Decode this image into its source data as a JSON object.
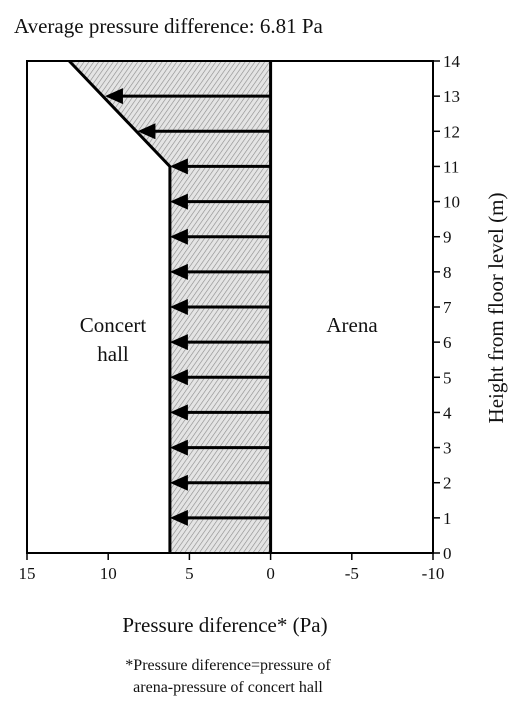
{
  "chart_data": {
    "type": "area",
    "title": "Average pressure difference: 6.81 Pa",
    "xlabel": "Pressure diference* (Pa)",
    "ylabel": "Height from floor level (m)",
    "xlim": [
      15,
      -10
    ],
    "ylim": [
      0,
      14
    ],
    "x_ticks": [
      "15",
      "10",
      "5",
      "0",
      "-5",
      "-10"
    ],
    "y_ticks": [
      "0",
      "1",
      "2",
      "3",
      "4",
      "5",
      "6",
      "7",
      "8",
      "9",
      "10",
      "11",
      "12",
      "13",
      "14"
    ],
    "profile": {
      "x": [
        6.2,
        6.2,
        12.4
      ],
      "y": [
        0,
        11,
        14
      ]
    },
    "arrows": {
      "heights": [
        1,
        2,
        3,
        4,
        5,
        6,
        7,
        8,
        9,
        10,
        11,
        12,
        13
      ],
      "values": [
        6.2,
        6.2,
        6.2,
        6.2,
        6.2,
        6.2,
        6.2,
        6.2,
        6.2,
        6.2,
        6.2,
        8.2,
        10.2
      ],
      "direction": "toward concert hall"
    },
    "region_labels": {
      "left": [
        "Concert",
        "hall"
      ],
      "right": "Arena"
    },
    "footnote": [
      "*Pressure diference=pressure of",
      "arena-pressure of concert hall"
    ],
    "colors": {
      "fill": "#c8c8c8",
      "line": "#000000"
    }
  }
}
